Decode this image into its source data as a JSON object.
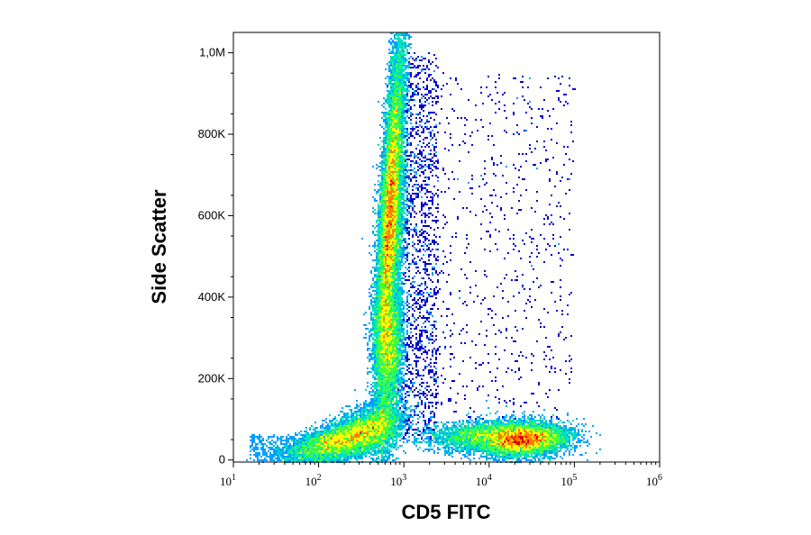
{
  "chart_data": {
    "type": "scatter",
    "subtype": "flow-cytometry-density-dot-plot",
    "xlabel": "CD5 FITC",
    "ylabel": "Side Scatter",
    "x_scale": "log",
    "xlim": [
      10,
      1000000
    ],
    "x_tick_labels": [
      {
        "base": "10",
        "exp": "1",
        "value": 10
      },
      {
        "base": "10",
        "exp": "2",
        "value": 100
      },
      {
        "base": "10",
        "exp": "3",
        "value": 1000
      },
      {
        "base": "10",
        "exp": "4",
        "value": 10000
      },
      {
        "base": "10",
        "exp": "5",
        "value": 100000
      },
      {
        "base": "10",
        "exp": "6",
        "value": 1000000
      }
    ],
    "y_scale": "linear",
    "ylim": [
      -5000,
      1050000
    ],
    "y_ticks": [
      {
        "label": "0",
        "value": 0
      },
      {
        "label": "200K",
        "value": 200000
      },
      {
        "label": "400K",
        "value": 400000
      },
      {
        "label": "600K",
        "value": 600000
      },
      {
        "label": "800K",
        "value": 800000
      },
      {
        "label": "1,0M",
        "value": 1000000
      }
    ],
    "grid": false,
    "legend": "none",
    "color_scale": [
      "#0000cc",
      "#00a0ff",
      "#00e0c0",
      "#40ff40",
      "#ffff00",
      "#ff8000",
      "#e00000"
    ],
    "populations": [
      {
        "id": "cd5-negative-low-ssc",
        "center_x": 200,
        "center_y": 50000,
        "density": "high"
      },
      {
        "id": "cd5-dim-high-ssc-granulocytes",
        "center_x": 700,
        "center_y": 650000,
        "density": "very high"
      },
      {
        "id": "cd5-dim-mid-ssc",
        "center_x": 650,
        "center_y": 300000,
        "density": "high"
      },
      {
        "id": "cd5-positive-low-ssc",
        "center_x": 25000,
        "center_y": 50000,
        "density": "very high"
      }
    ]
  }
}
